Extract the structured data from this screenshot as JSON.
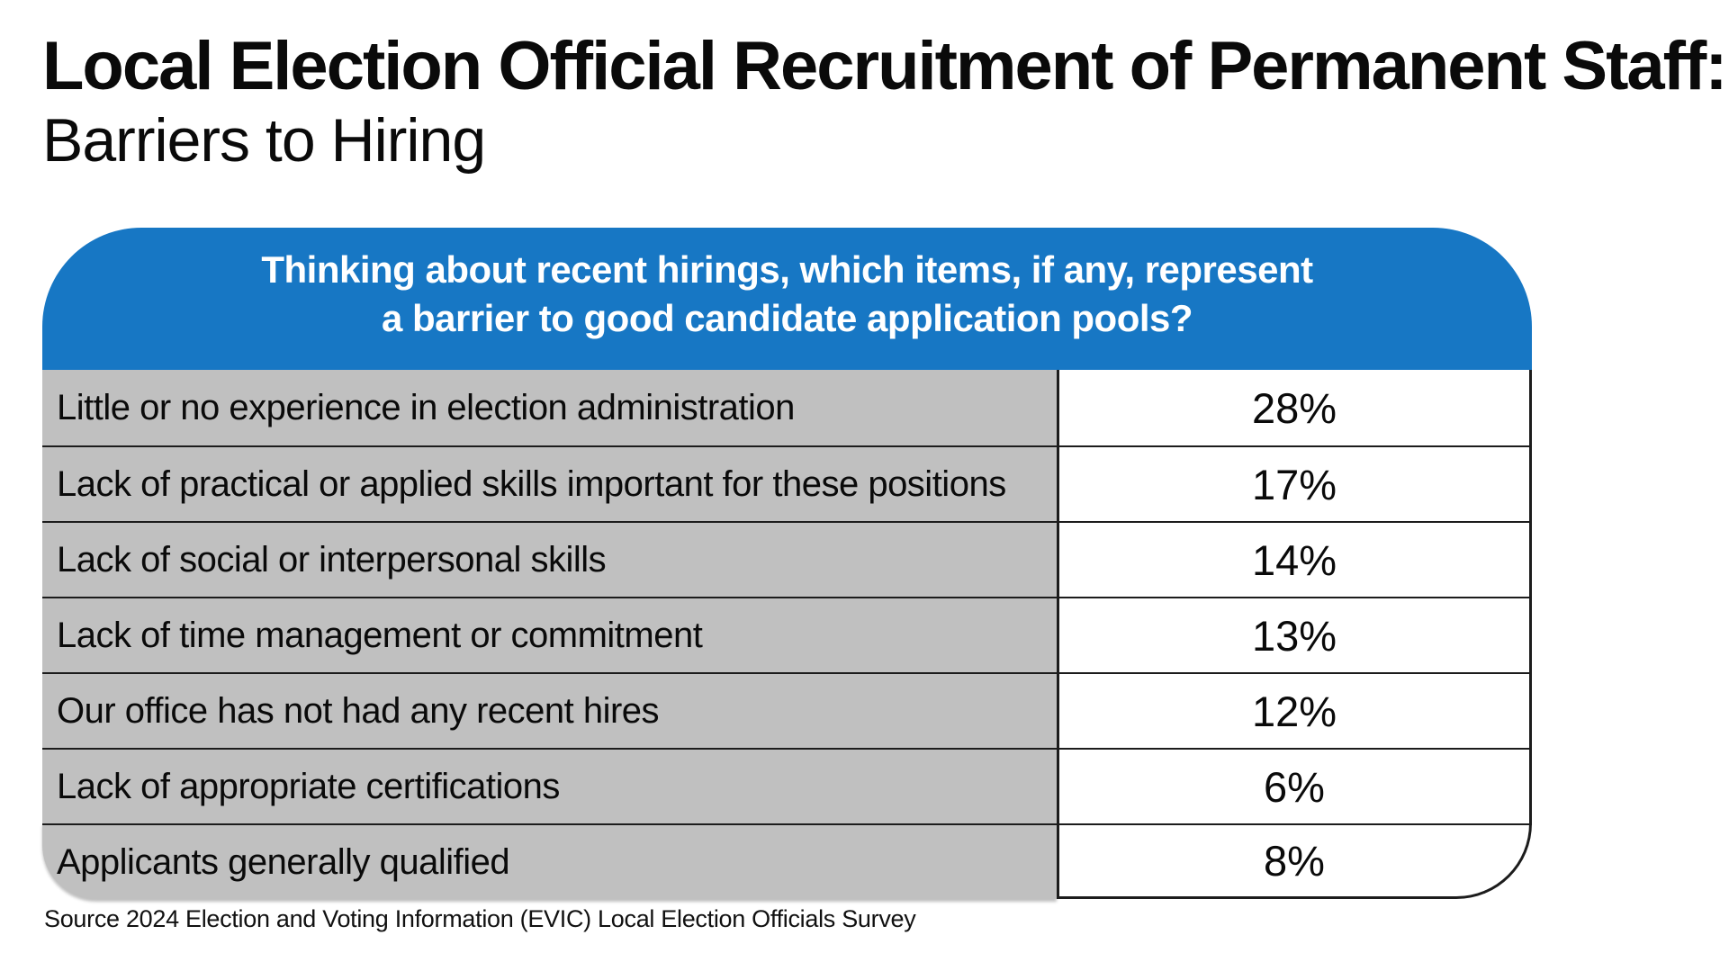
{
  "header": {
    "title": "Local Election Official Recruitment of Permanent Staff:",
    "subtitle": "Barriers to Hiring"
  },
  "question": {
    "line1": "Thinking about recent hirings, which items, if any, represent",
    "line2": "a barrier to good candidate application pools?"
  },
  "table": {
    "rows": [
      {
        "label": "Little or no experience in election administration",
        "value": "28%"
      },
      {
        "label": "Lack of practical or applied skills important for these positions",
        "value": "17%"
      },
      {
        "label": "Lack of social or interpersonal skills",
        "value": "14%"
      },
      {
        "label": "Lack of time management or commitment",
        "value": "13%"
      },
      {
        "label": "Our office has not had any recent hires",
        "value": "12%"
      },
      {
        "label": "Lack of appropriate certifications",
        "value": "6%"
      },
      {
        "label": "Applicants generally qualified",
        "value": "8%"
      }
    ]
  },
  "footer": {
    "source": "Source 2024 Election and Voting Information (EVIC) Local Election Officials Survey"
  },
  "colors": {
    "banner_blue": "#1777c4",
    "row_gray": "#c0c0c0",
    "border_black": "#1c1c1c",
    "text_black": "#0a0a0a",
    "banner_text_white": "#ffffff"
  },
  "chart_data": {
    "type": "table",
    "title": "Local Election Official Recruitment of Permanent Staff: Barriers to Hiring",
    "question": "Thinking about recent hirings, which items, if any, represent a barrier to good candidate application pools?",
    "categories": [
      "Little or no experience in election administration",
      "Lack of practical or applied skills important for these positions",
      "Lack of social or interpersonal skills",
      "Lack of time management or commitment",
      "Our office has not had any recent hires",
      "Lack of appropriate certifications",
      "Applicants generally qualified"
    ],
    "values": [
      28,
      17,
      14,
      13,
      12,
      6,
      8
    ],
    "unit": "%",
    "source": "Source 2024 Election and Voting Information (EVIC) Local Election Officials Survey"
  }
}
